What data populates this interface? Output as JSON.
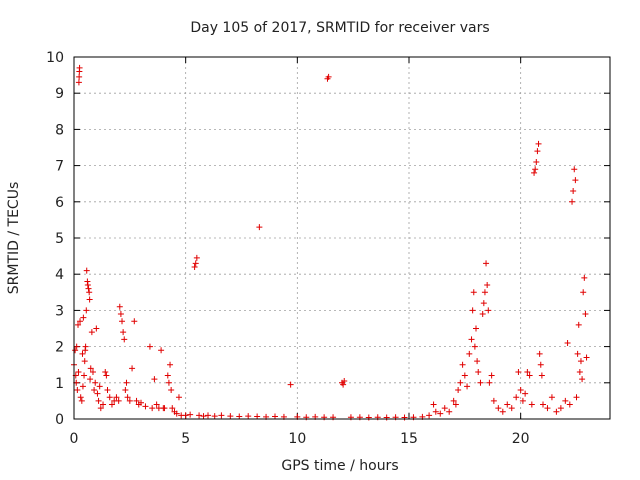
{
  "chart_data": {
    "type": "scatter",
    "title": "Day 105 of 2017, SRMTID for receiver vars",
    "xlabel": "GPS time / hours",
    "ylabel": "SRMTID / TECUs",
    "xlim": [
      0,
      24
    ],
    "ylim": [
      0,
      10
    ],
    "x_ticks": [
      0,
      5,
      10,
      15,
      20
    ],
    "y_ticks": [
      0,
      1,
      2,
      3,
      4,
      5,
      6,
      7,
      8,
      9,
      10
    ],
    "grid": true,
    "marker": "plus",
    "marker_color": "#e00000",
    "series": [
      {
        "points": [
          [
            0.0,
            1.5
          ],
          [
            0.05,
            1.9
          ],
          [
            0.08,
            1.2
          ],
          [
            0.1,
            1.0
          ],
          [
            0.12,
            2.0
          ],
          [
            0.15,
            0.8
          ],
          [
            0.18,
            2.6
          ],
          [
            0.2,
            1.3
          ],
          [
            0.22,
            9.3
          ],
          [
            0.23,
            9.45
          ],
          [
            0.24,
            9.6
          ],
          [
            0.25,
            9.7
          ],
          [
            0.27,
            2.7
          ],
          [
            0.3,
            0.6
          ],
          [
            0.35,
            0.5
          ],
          [
            0.38,
            1.8
          ],
          [
            0.4,
            0.9
          ],
          [
            0.42,
            2.8
          ],
          [
            0.45,
            1.2
          ],
          [
            0.48,
            1.6
          ],
          [
            0.5,
            1.9
          ],
          [
            0.52,
            2.0
          ],
          [
            0.55,
            3.0
          ],
          [
            0.57,
            4.1
          ],
          [
            0.6,
            3.8
          ],
          [
            0.62,
            3.7
          ],
          [
            0.65,
            3.6
          ],
          [
            0.68,
            3.5
          ],
          [
            0.7,
            3.3
          ],
          [
            0.72,
            1.1
          ],
          [
            0.75,
            1.4
          ],
          [
            0.8,
            2.4
          ],
          [
            0.85,
            1.3
          ],
          [
            0.9,
            0.8
          ],
          [
            0.95,
            1.0
          ],
          [
            1.0,
            2.5
          ],
          [
            1.05,
            0.7
          ],
          [
            1.1,
            0.5
          ],
          [
            1.15,
            0.9
          ],
          [
            1.2,
            0.3
          ],
          [
            1.3,
            0.4
          ],
          [
            1.4,
            1.3
          ],
          [
            1.45,
            1.2
          ],
          [
            1.5,
            0.8
          ],
          [
            1.6,
            0.6
          ],
          [
            1.7,
            0.4
          ],
          [
            1.8,
            0.5
          ],
          [
            1.9,
            0.6
          ],
          [
            2.0,
            0.5
          ],
          [
            2.05,
            3.1
          ],
          [
            2.1,
            2.9
          ],
          [
            2.15,
            2.7
          ],
          [
            2.2,
            2.4
          ],
          [
            2.25,
            2.2
          ],
          [
            2.3,
            0.8
          ],
          [
            2.35,
            1.0
          ],
          [
            2.4,
            0.6
          ],
          [
            2.5,
            0.5
          ],
          [
            2.6,
            1.4
          ],
          [
            2.7,
            2.7
          ],
          [
            2.8,
            0.5
          ],
          [
            2.9,
            0.4
          ],
          [
            3.0,
            0.45
          ],
          [
            3.2,
            0.35
          ],
          [
            3.4,
            2.0
          ],
          [
            3.5,
            0.3
          ],
          [
            3.6,
            1.1
          ],
          [
            3.7,
            0.4
          ],
          [
            3.8,
            0.3
          ],
          [
            3.9,
            1.9
          ],
          [
            4.0,
            0.3
          ],
          [
            4.05,
            0.3
          ],
          [
            4.2,
            1.2
          ],
          [
            4.25,
            1.0
          ],
          [
            4.3,
            1.5
          ],
          [
            4.35,
            0.8
          ],
          [
            4.4,
            0.3
          ],
          [
            4.5,
            0.2
          ],
          [
            4.6,
            0.15
          ],
          [
            4.7,
            0.6
          ],
          [
            4.8,
            0.1
          ],
          [
            5.0,
            0.1
          ],
          [
            5.2,
            0.12
          ],
          [
            5.4,
            4.2
          ],
          [
            5.45,
            4.3
          ],
          [
            5.5,
            4.45
          ],
          [
            5.6,
            0.1
          ],
          [
            5.8,
            0.08
          ],
          [
            6.0,
            0.1
          ],
          [
            6.3,
            0.08
          ],
          [
            6.6,
            0.1
          ],
          [
            7.0,
            0.08
          ],
          [
            7.4,
            0.07
          ],
          [
            7.8,
            0.08
          ],
          [
            8.2,
            0.07
          ],
          [
            8.3,
            5.3
          ],
          [
            8.6,
            0.06
          ],
          [
            9.0,
            0.07
          ],
          [
            9.4,
            0.06
          ],
          [
            9.7,
            0.95
          ],
          [
            10.0,
            0.06
          ],
          [
            10.4,
            0.05
          ],
          [
            10.8,
            0.06
          ],
          [
            11.2,
            0.05
          ],
          [
            11.35,
            9.4
          ],
          [
            11.4,
            9.45
          ],
          [
            11.6,
            0.05
          ],
          [
            12.0,
            1.0
          ],
          [
            12.05,
            0.95
          ],
          [
            12.1,
            1.05
          ],
          [
            12.4,
            0.05
          ],
          [
            12.8,
            0.05
          ],
          [
            13.2,
            0.04
          ],
          [
            13.6,
            0.05
          ],
          [
            14.0,
            0.04
          ],
          [
            14.4,
            0.05
          ],
          [
            14.8,
            0.04
          ],
          [
            15.2,
            0.05
          ],
          [
            15.6,
            0.06
          ],
          [
            15.9,
            0.1
          ],
          [
            16.1,
            0.4
          ],
          [
            16.2,
            0.2
          ],
          [
            16.4,
            0.15
          ],
          [
            16.6,
            0.3
          ],
          [
            16.8,
            0.2
          ],
          [
            17.0,
            0.5
          ],
          [
            17.1,
            0.4
          ],
          [
            17.2,
            0.8
          ],
          [
            17.3,
            1.0
          ],
          [
            17.4,
            1.5
          ],
          [
            17.5,
            1.2
          ],
          [
            17.6,
            0.9
          ],
          [
            17.7,
            1.8
          ],
          [
            17.8,
            2.2
          ],
          [
            17.85,
            3.0
          ],
          [
            17.9,
            3.5
          ],
          [
            17.95,
            2.0
          ],
          [
            18.0,
            2.5
          ],
          [
            18.05,
            1.6
          ],
          [
            18.1,
            1.3
          ],
          [
            18.2,
            1.0
          ],
          [
            18.3,
            2.9
          ],
          [
            18.35,
            3.2
          ],
          [
            18.4,
            3.5
          ],
          [
            18.45,
            4.3
          ],
          [
            18.5,
            3.7
          ],
          [
            18.55,
            3.0
          ],
          [
            18.6,
            1.0
          ],
          [
            18.7,
            1.2
          ],
          [
            18.8,
            0.5
          ],
          [
            19.0,
            0.3
          ],
          [
            19.2,
            0.2
          ],
          [
            19.4,
            0.4
          ],
          [
            19.6,
            0.3
          ],
          [
            19.8,
            0.6
          ],
          [
            19.9,
            1.3
          ],
          [
            20.0,
            0.8
          ],
          [
            20.1,
            0.5
          ],
          [
            20.2,
            0.7
          ],
          [
            20.3,
            1.3
          ],
          [
            20.4,
            1.2
          ],
          [
            20.5,
            0.4
          ],
          [
            20.6,
            6.8
          ],
          [
            20.65,
            6.9
          ],
          [
            20.7,
            7.1
          ],
          [
            20.75,
            7.4
          ],
          [
            20.8,
            7.6
          ],
          [
            20.85,
            1.8
          ],
          [
            20.9,
            1.5
          ],
          [
            20.95,
            1.2
          ],
          [
            21.0,
            0.4
          ],
          [
            21.2,
            0.3
          ],
          [
            21.4,
            0.6
          ],
          [
            21.6,
            0.2
          ],
          [
            21.8,
            0.3
          ],
          [
            22.0,
            0.5
          ],
          [
            22.1,
            2.1
          ],
          [
            22.2,
            0.4
          ],
          [
            22.3,
            6.0
          ],
          [
            22.35,
            6.3
          ],
          [
            22.4,
            6.9
          ],
          [
            22.45,
            6.6
          ],
          [
            22.5,
            0.6
          ],
          [
            22.55,
            1.8
          ],
          [
            22.6,
            2.6
          ],
          [
            22.65,
            1.3
          ],
          [
            22.7,
            1.6
          ],
          [
            22.75,
            1.1
          ],
          [
            22.8,
            3.5
          ],
          [
            22.85,
            3.9
          ],
          [
            22.9,
            2.9
          ],
          [
            22.95,
            1.7
          ]
        ]
      }
    ]
  }
}
